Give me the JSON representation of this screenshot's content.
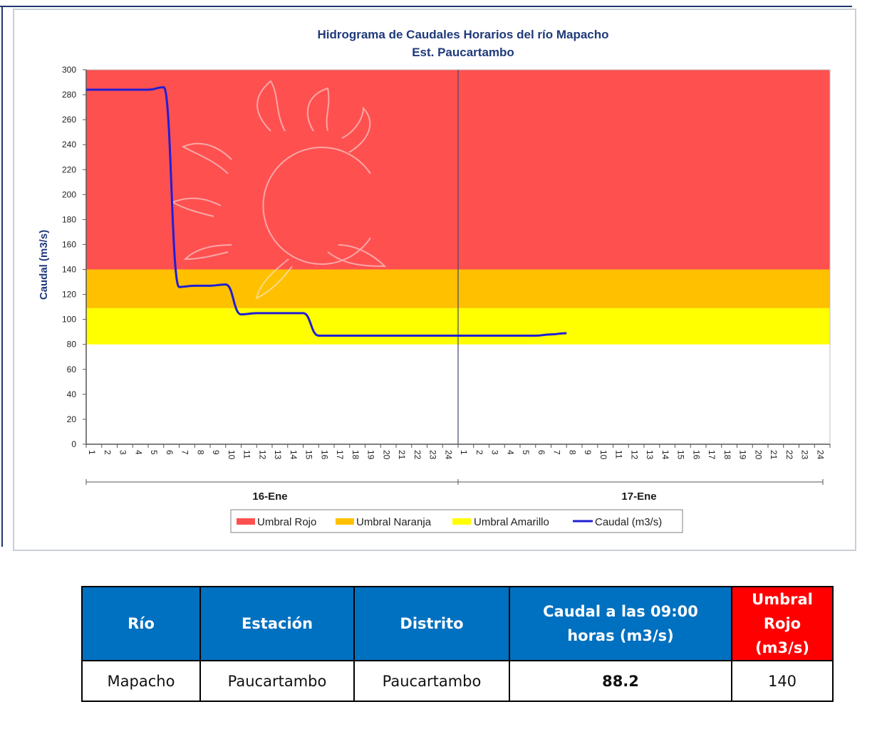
{
  "chart_data": {
    "type": "line",
    "title": "Hidrograma de Caudales Horarios del río Mapacho",
    "subtitle": "Est. Paucartambo",
    "ylabel": "Caudal (m3/s)",
    "ylim": [
      0,
      300
    ],
    "yticks": [
      0,
      20,
      40,
      60,
      80,
      100,
      120,
      140,
      160,
      180,
      200,
      220,
      240,
      260,
      280,
      300
    ],
    "days": [
      "16-Ene",
      "17-Ene"
    ],
    "hour_ticks": [
      "1",
      "2",
      "3",
      "4",
      "5",
      "6",
      "7",
      "8",
      "9",
      "10",
      "11",
      "12",
      "13",
      "14",
      "15",
      "16",
      "17",
      "18",
      "19",
      "20",
      "21",
      "22",
      "23",
      "24"
    ],
    "thresholds": [
      {
        "name": "Umbral Rojo",
        "from": 140,
        "to": 300,
        "color": "#ff5050"
      },
      {
        "name": "Umbral Naranja",
        "from": 109,
        "to": 140,
        "color": "#ffc000"
      },
      {
        "name": "Umbral Amarillo",
        "from": 80,
        "to": 109,
        "color": "#ffff00"
      }
    ],
    "series": [
      {
        "name": "Caudal (m3/s)",
        "color": "#1f1fd6",
        "values": [
          284,
          284,
          284,
          284,
          284,
          286,
          126,
          127,
          127,
          128,
          104,
          105,
          105,
          105,
          105,
          87,
          87,
          87,
          87,
          87,
          87,
          87,
          87,
          87,
          87,
          87,
          87,
          87,
          87,
          87,
          88,
          89
        ]
      }
    ],
    "grid": false,
    "legend_position": "bottom"
  },
  "legend": {
    "items": [
      {
        "label": "Umbral Rojo",
        "color": "#ff5050",
        "kind": "box"
      },
      {
        "label": "Umbral Naranja",
        "color": "#ffc000",
        "kind": "box"
      },
      {
        "label": "Umbral Amarillo",
        "color": "#ffff00",
        "kind": "box"
      },
      {
        "label": "Caudal (m3/s)",
        "color": "#1f1fd6",
        "kind": "line"
      }
    ]
  },
  "table": {
    "headers": [
      "Río",
      "Estación",
      "Distrito",
      "Caudal a las 09:00 horas (m3/s)",
      "Umbral Rojo (m3/s)"
    ],
    "row": [
      "Mapacho",
      "Paucartambo",
      "Paucartambo",
      "88.2",
      "140"
    ]
  }
}
